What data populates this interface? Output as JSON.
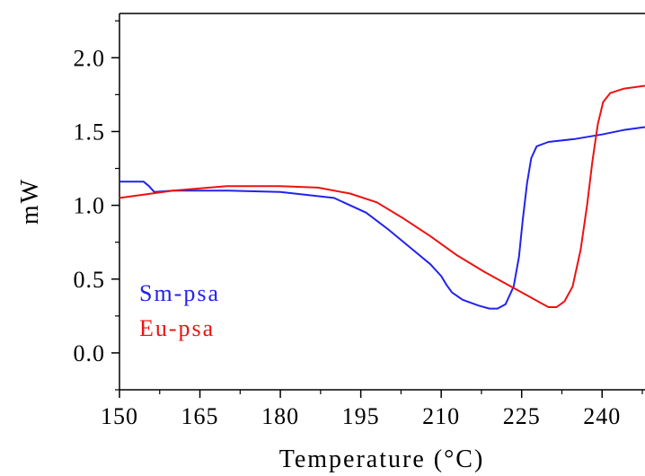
{
  "chart_data": {
    "type": "line",
    "title": "",
    "xlabel": "Temperature (°C)",
    "ylabel": "mW",
    "xlim": [
      150,
      248
    ],
    "ylim": [
      -0.25,
      2.3
    ],
    "x_ticks": [
      150,
      165,
      180,
      195,
      210,
      225,
      240
    ],
    "x_tick_labels": [
      "150",
      "165",
      "180",
      "195",
      "210",
      "225",
      "240"
    ],
    "y_ticks": [
      0.0,
      0.5,
      1.0,
      1.5,
      2.0
    ],
    "y_tick_labels": [
      "0.0",
      "0.5",
      "1.0",
      "1.5",
      "2.0"
    ],
    "grid": false,
    "legend_position": "bottom-left",
    "series": [
      {
        "name": "Sm-psa",
        "color": "#2222ee",
        "points": [
          [
            150,
            1.16
          ],
          [
            154.5,
            1.16
          ],
          [
            155.5,
            1.13
          ],
          [
            156.5,
            1.09
          ],
          [
            160,
            1.1
          ],
          [
            170,
            1.1
          ],
          [
            180,
            1.09
          ],
          [
            190,
            1.05
          ],
          [
            196,
            0.95
          ],
          [
            200,
            0.84
          ],
          [
            205,
            0.69
          ],
          [
            208,
            0.6
          ],
          [
            210,
            0.52
          ],
          [
            211,
            0.46
          ],
          [
            212,
            0.41
          ],
          [
            214,
            0.36
          ],
          [
            217,
            0.32
          ],
          [
            219,
            0.3
          ],
          [
            220.5,
            0.3
          ],
          [
            222,
            0.33
          ],
          [
            223.5,
            0.45
          ],
          [
            224.5,
            0.65
          ],
          [
            225.2,
            0.9
          ],
          [
            226,
            1.15
          ],
          [
            226.8,
            1.32
          ],
          [
            227.8,
            1.4
          ],
          [
            230,
            1.43
          ],
          [
            235,
            1.45
          ],
          [
            240,
            1.48
          ],
          [
            244,
            1.51
          ],
          [
            248,
            1.53
          ]
        ]
      },
      {
        "name": "Eu-psa",
        "color": "#ee1111",
        "points": [
          [
            150,
            1.05
          ],
          [
            160,
            1.1
          ],
          [
            170,
            1.13
          ],
          [
            180,
            1.13
          ],
          [
            187,
            1.12
          ],
          [
            193,
            1.08
          ],
          [
            198,
            1.02
          ],
          [
            203,
            0.91
          ],
          [
            208,
            0.79
          ],
          [
            213,
            0.66
          ],
          [
            218,
            0.55
          ],
          [
            222,
            0.47
          ],
          [
            224.5,
            0.42
          ],
          [
            226.5,
            0.38
          ],
          [
            228.5,
            0.34
          ],
          [
            230,
            0.31
          ],
          [
            231.5,
            0.31
          ],
          [
            233,
            0.35
          ],
          [
            234.5,
            0.45
          ],
          [
            236,
            0.7
          ],
          [
            237.2,
            1.0
          ],
          [
            238.2,
            1.3
          ],
          [
            239.2,
            1.55
          ],
          [
            240.2,
            1.7
          ],
          [
            241.5,
            1.76
          ],
          [
            244,
            1.79
          ],
          [
            248,
            1.81
          ]
        ]
      }
    ]
  }
}
